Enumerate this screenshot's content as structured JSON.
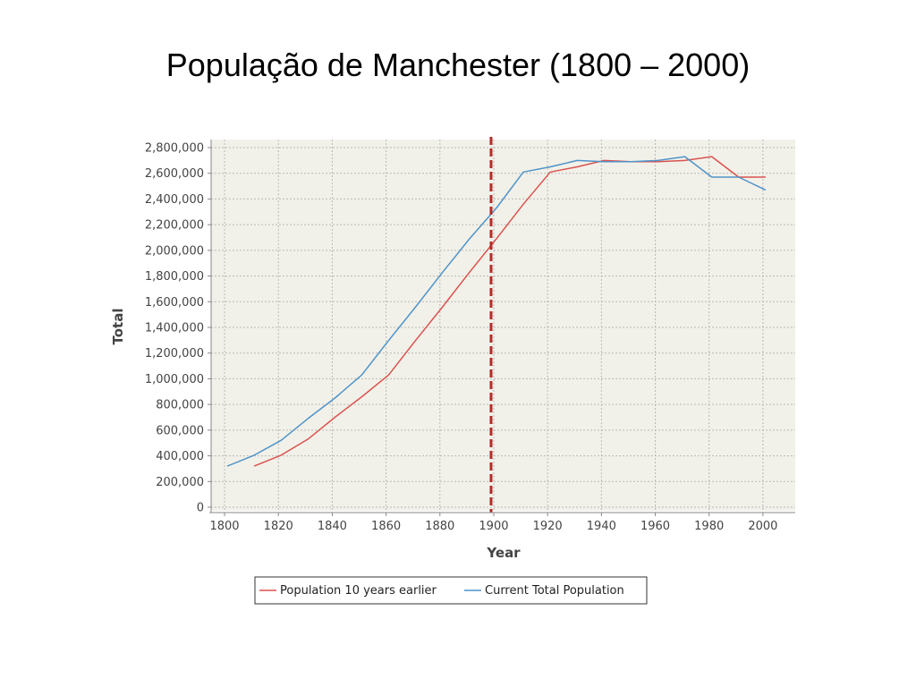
{
  "title": "População de Manchester (1800 – 2000)",
  "colors": {
    "plot_background": "#f2f1e9",
    "grid": "#b8b8b8",
    "series_earlier": "#d9534f",
    "series_current": "#4f93c9",
    "marker_line": "#b52b27"
  },
  "chart_data": {
    "type": "line",
    "title": "",
    "xlabel": "Year",
    "ylabel": "Total",
    "xlim": [
      1795,
      2012
    ],
    "ylim": [
      0,
      2800000
    ],
    "x_ticks": [
      1800,
      1820,
      1840,
      1860,
      1880,
      1900,
      1920,
      1940,
      1960,
      1980,
      2000
    ],
    "y_ticks": [
      0,
      200000,
      400000,
      600000,
      800000,
      1000000,
      1200000,
      1400000,
      1600000,
      1800000,
      2000000,
      2200000,
      2400000,
      2600000,
      2800000
    ],
    "y_tick_labels": [
      "0",
      "200,000",
      "400,000",
      "600,000",
      "800,000",
      "1,000,000",
      "1,200,000",
      "1,400,000",
      "1,600,000",
      "1,800,000",
      "2,000,000",
      "2,200,000",
      "2,400,000",
      "2,600,000",
      "2,800,000"
    ],
    "grid": true,
    "legend_position": "bottom",
    "vertical_marker_x": 1899,
    "series": [
      {
        "name": "Population 10 years earlier",
        "color_key": "series_earlier",
        "points": [
          [
            1811,
            320000
          ],
          [
            1821,
            405000
          ],
          [
            1831,
            530000
          ],
          [
            1841,
            700000
          ],
          [
            1851,
            860000
          ],
          [
            1861,
            1030000
          ],
          [
            1871,
            1300000
          ],
          [
            1881,
            1560000
          ],
          [
            1891,
            1830000
          ],
          [
            1901,
            2090000
          ],
          [
            1911,
            2360000
          ],
          [
            1921,
            2610000
          ],
          [
            1931,
            2650000
          ],
          [
            1941,
            2700000
          ],
          [
            1951,
            2690000
          ],
          [
            1961,
            2690000
          ],
          [
            1971,
            2700000
          ],
          [
            1981,
            2730000
          ],
          [
            1991,
            2570000
          ],
          [
            2001,
            2570000
          ]
        ]
      },
      {
        "name": "Current Total Population",
        "color_key": "series_current",
        "points": [
          [
            1801,
            320000
          ],
          [
            1811,
            405000
          ],
          [
            1821,
            520000
          ],
          [
            1831,
            690000
          ],
          [
            1841,
            850000
          ],
          [
            1851,
            1030000
          ],
          [
            1861,
            1300000
          ],
          [
            1871,
            1560000
          ],
          [
            1881,
            1830000
          ],
          [
            1891,
            2090000
          ],
          [
            1901,
            2330000
          ],
          [
            1911,
            2610000
          ],
          [
            1921,
            2650000
          ],
          [
            1931,
            2700000
          ],
          [
            1941,
            2690000
          ],
          [
            1951,
            2690000
          ],
          [
            1961,
            2700000
          ],
          [
            1971,
            2730000
          ],
          [
            1981,
            2570000
          ],
          [
            1991,
            2570000
          ],
          [
            2001,
            2470000
          ]
        ]
      }
    ]
  }
}
